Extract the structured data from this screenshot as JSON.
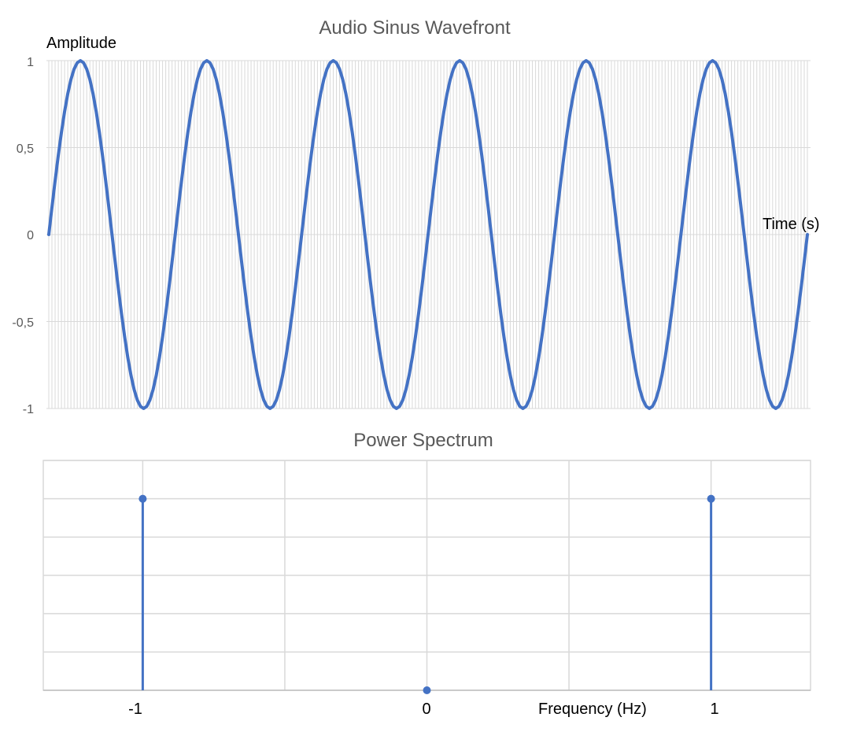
{
  "chart_data": [
    {
      "type": "line",
      "title": "Audio Sinus Wavefront",
      "xlabel": "Time (s)",
      "ylabel": "Amplitude",
      "ylim": [
        -1,
        1
      ],
      "y_ticks": [
        "1",
        "0,5",
        "0",
        "-0,5",
        "-1"
      ],
      "y_tick_values": [
        1,
        0.5,
        0,
        -0.5,
        -1
      ],
      "grid": "on",
      "legend": "none",
      "cycles": 6,
      "sample_count": 241,
      "series": [
        {
          "name": "",
          "function": "sin",
          "amplitude": 1,
          "color": "#4472C4"
        }
      ]
    },
    {
      "type": "scatter",
      "title": "Power Spectrum",
      "xlabel": "Frequency (Hz)",
      "ylabel": "",
      "xlim": [
        -1.35,
        1.35
      ],
      "ylim": [
        0,
        1.2
      ],
      "x_ticks": [
        "-1",
        "0",
        "1"
      ],
      "x_tick_values": [
        -1,
        0,
        1
      ],
      "grid": "on",
      "legend": "none",
      "points": [
        {
          "x": -1,
          "y": 1
        },
        {
          "x": 0,
          "y": 0
        },
        {
          "x": 1,
          "y": 1
        }
      ],
      "color": "#4472C4"
    }
  ]
}
